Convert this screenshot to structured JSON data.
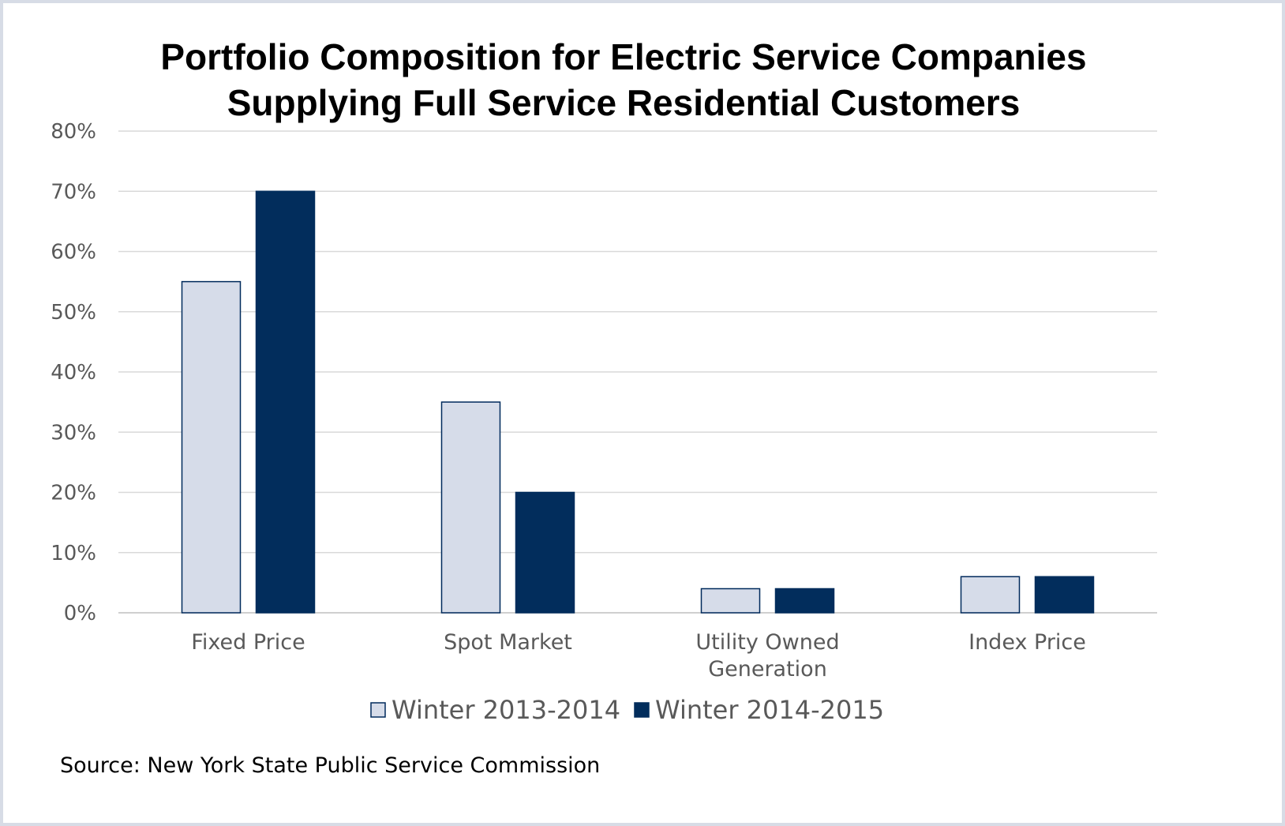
{
  "chart_data": {
    "type": "bar",
    "title_lines": [
      "Portfolio Composition for Electric Service Companies",
      "Supplying Full Service Residential Customers"
    ],
    "categories": [
      [
        "Fixed Price"
      ],
      [
        "Spot Market"
      ],
      [
        "Utility Owned",
        "Generation"
      ],
      [
        "Index Price"
      ]
    ],
    "series": [
      {
        "name": "Winter 2013-2014",
        "values": [
          55,
          35,
          4,
          6
        ],
        "color": "#d6dce9",
        "stroke": "#002a5c"
      },
      {
        "name": "Winter 2014-2015",
        "values": [
          70,
          20,
          4,
          6
        ],
        "color": "#022d5c",
        "stroke": "#022d5c"
      }
    ],
    "ylim": [
      0,
      80
    ],
    "yticks": [
      0,
      10,
      20,
      30,
      40,
      50,
      60,
      70,
      80
    ],
    "ytick_suffix": "%",
    "grid": true,
    "legend_position": "bottom"
  },
  "source": "Source: New York State Public Service Commission"
}
